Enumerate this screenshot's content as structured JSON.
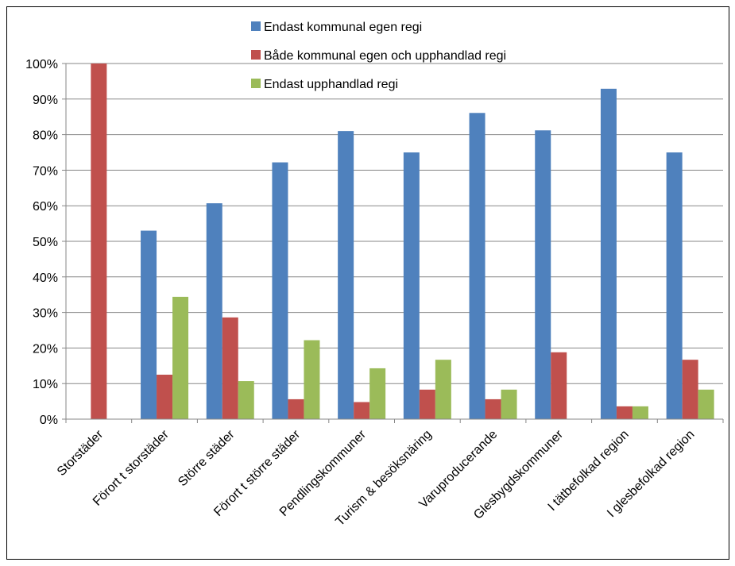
{
  "chart_data": {
    "type": "bar",
    "title": "",
    "xlabel": "",
    "ylabel": "",
    "ylim": [
      0,
      100
    ],
    "yticks": [
      0,
      10,
      20,
      30,
      40,
      50,
      60,
      70,
      80,
      90,
      100
    ],
    "ytick_labels": [
      "0%",
      "10%",
      "20%",
      "30%",
      "40%",
      "50%",
      "60%",
      "70%",
      "80%",
      "90%",
      "100%"
    ],
    "grid": true,
    "legend_position": "top",
    "categories": [
      "Storstäder",
      "Förort t storstäder",
      "Större städer",
      "Förort t större städer",
      "Pendlingskommuner",
      "Turism & besöksnäring",
      "Varuproducerande",
      "Glesbygdskommuner",
      "I tätbefolkad region",
      "I glesbefolkad region"
    ],
    "series": [
      {
        "name": "Endast kommunal egen regi",
        "color": "#4f81bd",
        "values": [
          0,
          53,
          60.7,
          72.2,
          81,
          75,
          86.1,
          81.2,
          92.9,
          75
        ]
      },
      {
        "name": "Både kommunal egen och upphandlad regi",
        "color": "#c0504d",
        "values": [
          100,
          12.5,
          28.6,
          5.6,
          4.8,
          8.3,
          5.6,
          18.8,
          3.6,
          16.7
        ]
      },
      {
        "name": "Endast upphandlad regi",
        "color": "#9bbb59",
        "values": [
          0,
          34.4,
          10.7,
          22.2,
          14.3,
          16.7,
          8.3,
          0,
          3.6,
          8.3
        ]
      }
    ]
  }
}
